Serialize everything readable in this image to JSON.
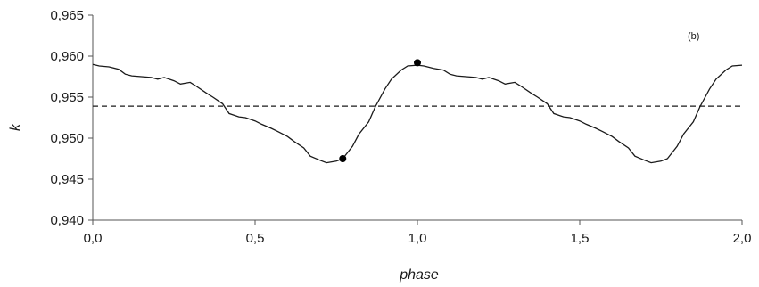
{
  "chart_data": {
    "type": "line",
    "title": "",
    "panel_label": "(b)",
    "xlabel": "phase",
    "ylabel": "k",
    "xlim": [
      0.0,
      2.0
    ],
    "ylim": [
      0.94,
      0.965
    ],
    "x_ticks": [
      "0,0",
      "0,5",
      "1,0",
      "1,5",
      "2,0"
    ],
    "x_tick_values": [
      0.0,
      0.5,
      1.0,
      1.5,
      2.0
    ],
    "y_ticks": [
      "0,940",
      "0,945",
      "0,950",
      "0,955",
      "0,960",
      "0,965"
    ],
    "y_tick_values": [
      0.94,
      0.945,
      0.95,
      0.955,
      0.96,
      0.965
    ],
    "grid": false,
    "legend": false,
    "reference_line": {
      "y": 0.9539,
      "style": "dashed"
    },
    "series": [
      {
        "x": [
          0.0,
          0.02,
          0.05,
          0.08,
          0.1,
          0.12,
          0.15,
          0.18,
          0.2,
          0.22,
          0.25,
          0.27,
          0.3,
          0.32,
          0.35,
          0.37,
          0.4,
          0.42,
          0.45,
          0.47,
          0.5,
          0.52,
          0.55,
          0.57,
          0.6,
          0.62,
          0.65,
          0.67,
          0.7,
          0.72,
          0.75,
          0.77,
          0.8,
          0.82,
          0.85,
          0.87,
          0.9,
          0.92,
          0.95,
          0.97,
          1.0,
          1.02,
          1.05,
          1.08,
          1.1,
          1.12,
          1.15,
          1.18,
          1.2,
          1.22,
          1.25,
          1.27,
          1.3,
          1.32,
          1.35,
          1.37,
          1.4,
          1.42,
          1.45,
          1.47,
          1.5,
          1.52,
          1.55,
          1.57,
          1.6,
          1.62,
          1.65,
          1.67,
          1.7,
          1.72,
          1.75,
          1.77,
          1.8,
          1.82,
          1.85,
          1.87,
          1.9,
          1.92,
          1.95,
          1.97,
          2.0
        ],
        "y": [
          0.959,
          0.9588,
          0.9587,
          0.9584,
          0.9578,
          0.9576,
          0.9575,
          0.9574,
          0.9572,
          0.9574,
          0.957,
          0.9566,
          0.9568,
          0.9563,
          0.9555,
          0.955,
          0.9542,
          0.953,
          0.9526,
          0.9525,
          0.9521,
          0.9517,
          0.9512,
          0.9508,
          0.9502,
          0.9496,
          0.9488,
          0.9478,
          0.9473,
          0.947,
          0.9472,
          0.9475,
          0.949,
          0.9505,
          0.952,
          0.9538,
          0.956,
          0.9572,
          0.9583,
          0.9588,
          0.9589,
          0.9588,
          0.9585,
          0.9583,
          0.9578,
          0.9576,
          0.9575,
          0.9574,
          0.9572,
          0.9574,
          0.957,
          0.9566,
          0.9568,
          0.9563,
          0.9555,
          0.955,
          0.9542,
          0.953,
          0.9526,
          0.9525,
          0.9521,
          0.9517,
          0.9512,
          0.9508,
          0.9502,
          0.9496,
          0.9488,
          0.9478,
          0.9473,
          0.947,
          0.9472,
          0.9475,
          0.949,
          0.9505,
          0.952,
          0.9538,
          0.956,
          0.9572,
          0.9583,
          0.9588,
          0.9589
        ]
      }
    ],
    "markers": [
      {
        "x": 0.77,
        "y": 0.9475
      },
      {
        "x": 1.0,
        "y": 0.9592
      }
    ]
  },
  "colors": {
    "line": "#1a1a1a",
    "axis": "#555555",
    "marker": "#000000",
    "background": "#ffffff"
  }
}
